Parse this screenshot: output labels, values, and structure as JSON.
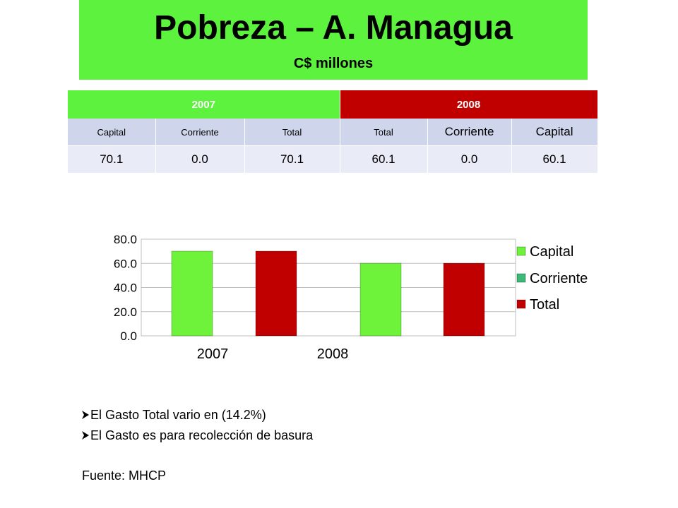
{
  "colors": {
    "green": "#5cf23e",
    "red": "#c00000",
    "row_light": "#cfd6ec",
    "row_lighter": "#e9ecf7",
    "bar_green": "#6ef23a",
    "bar_red": "#c00000"
  },
  "header": {
    "title": "Pobreza – A. Managua",
    "subtitle": "C$ millones"
  },
  "table": {
    "group_2007": "2007",
    "group_2008": "2008",
    "subheaders": [
      "Capital",
      "Corriente",
      "Total",
      "Total",
      "Corriente",
      "Capital"
    ],
    "values": [
      "70.1",
      "0.0",
      "70.1",
      "60.1",
      "0.0",
      "60.1"
    ]
  },
  "chart_data": {
    "type": "bar",
    "categories": [
      "2007",
      "2008"
    ],
    "series": [
      {
        "name": "Capital",
        "values": [
          70.1,
          60.1
        ],
        "color": "#6ef23a"
      },
      {
        "name": "Corriente",
        "values": [
          0.0,
          0.0
        ],
        "color": "#3cb878"
      },
      {
        "name": "Total",
        "values": [
          70.1,
          60.1
        ],
        "color": "#c00000"
      }
    ],
    "yticks": [
      "0.0",
      "20.0",
      "40.0",
      "60.0",
      "80.0"
    ],
    "ylim": [
      0,
      80
    ],
    "grid": true,
    "legend": "right"
  },
  "bullets": [
    "El Gasto Total vario en (14.2%)",
    "El Gasto es para recolección de basura"
  ],
  "source": "Fuente: MHCP"
}
